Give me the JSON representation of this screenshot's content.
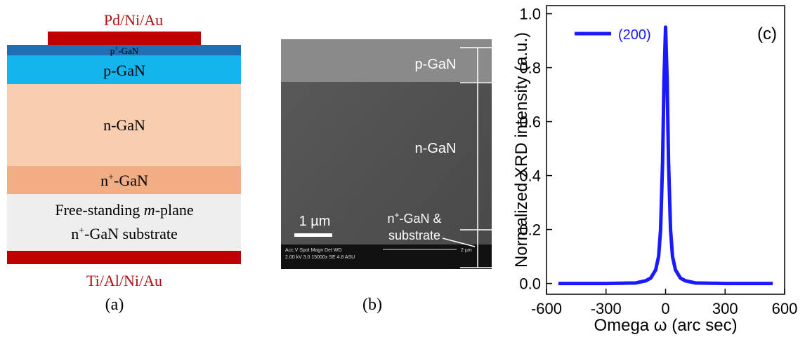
{
  "panel_a": {
    "top_contact": "Pd/Ni/Au",
    "layers": [
      {
        "base": "p",
        "sup": "+",
        "rest": "-GaN"
      },
      {
        "text": "p-GaN"
      },
      {
        "text": "n-GaN"
      },
      {
        "base": "n",
        "sup": "+",
        "rest": "-GaN"
      },
      {
        "line1": [
          "Free-standing ",
          "m",
          "-plane"
        ],
        "line2": {
          "base": "n",
          "sup": "+",
          "rest": "-GaN substrate"
        }
      }
    ],
    "bottom_contact": "Ti/Al/Ni/Au",
    "caption": "(a)"
  },
  "panel_b": {
    "labels": {
      "p_gan": "p-GaN",
      "n_gan": "n-GaN",
      "substrate": {
        "base": "n",
        "sup": "+",
        "rest": "-GaN &",
        "line2": "substrate"
      }
    },
    "scale_bar": "1 µm",
    "info_bar": {
      "header": "Acc.V  Spot  Magn   Det  WD",
      "values": "2.00 kV  3.0   15000x  SE  4.8    ASU",
      "marker": "2 µm"
    },
    "caption": "(b)"
  },
  "chart_data": {
    "type": "line",
    "panel_label": "(c)",
    "x_label": "Omega ω (arc sec)",
    "y_label": "Normalized XRD intensity (a.u.)",
    "x": [
      -540,
      -300,
      -150,
      -100,
      -75,
      -50,
      -35,
      -25,
      -15,
      -8,
      0,
      8,
      15,
      25,
      35,
      50,
      75,
      100,
      150,
      300,
      540
    ],
    "series": [
      {
        "name": "(200)",
        "color": "#1a1aff",
        "values": [
          0,
          0,
          0.002,
          0.01,
          0.02,
          0.05,
          0.1,
          0.2,
          0.45,
          0.75,
          0.95,
          0.75,
          0.45,
          0.2,
          0.1,
          0.05,
          0.02,
          0.01,
          0.002,
          0,
          0
        ]
      }
    ],
    "xlim": [
      -600,
      600
    ],
    "ylim": [
      -0.04,
      1.03
    ],
    "xticks": [
      -600,
      -300,
      0,
      300,
      600
    ],
    "yticks": [
      {
        "value": 0,
        "label": "0.0"
      },
      0.2,
      0.4,
      0.6,
      0.8,
      {
        "value": 1,
        "label": "1.0"
      }
    ],
    "legend": "upper left"
  }
}
